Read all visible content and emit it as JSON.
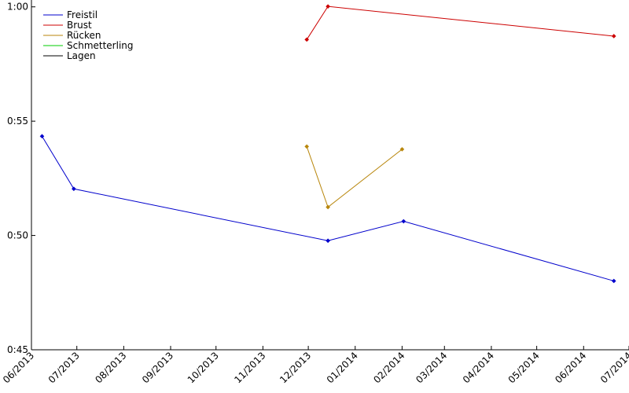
{
  "chart_data": {
    "type": "line",
    "title": "",
    "xlabel": "",
    "ylabel": "",
    "x_ticks": [
      "06/2013",
      "07/2013",
      "08/2013",
      "09/2013",
      "10/2013",
      "11/2013",
      "12/2013",
      "01/2014",
      "02/2014",
      "03/2014",
      "04/2014",
      "05/2014",
      "06/2014",
      "07/2014"
    ],
    "y_ticks": [
      "0:45",
      "0:50",
      "0:55",
      "1:00"
    ],
    "y_tick_values": [
      45,
      50,
      55,
      60
    ],
    "xlim": [
      "2013-06-01",
      "2014-07-01"
    ],
    "ylim": [
      45,
      60.3
    ],
    "legend_position": "top-left",
    "grid": false,
    "series": [
      {
        "name": "Freistil",
        "color": "#0000cc",
        "points": [
          {
            "x": "2013-06-08",
            "y": 54.34
          },
          {
            "x": "2013-06-29",
            "y": 52.04
          },
          {
            "x": "2013-12-14",
            "y": 49.77
          },
          {
            "x": "2014-02-02",
            "y": 50.62
          },
          {
            "x": "2014-06-21",
            "y": 48.01
          }
        ]
      },
      {
        "name": "Brust",
        "color": "#cc0000",
        "points": [
          {
            "x": "2013-11-30",
            "y": 58.57
          },
          {
            "x": "2013-12-14",
            "y": 60.02
          },
          {
            "x": "2014-06-21",
            "y": 58.72
          }
        ]
      },
      {
        "name": "Rücken",
        "color": "#b8860b",
        "points": [
          {
            "x": "2013-11-30",
            "y": 53.89
          },
          {
            "x": "2013-12-14",
            "y": 51.24
          },
          {
            "x": "2014-02-01",
            "y": 53.77
          }
        ]
      },
      {
        "name": "Schmetterling",
        "color": "#00cc00",
        "points": []
      },
      {
        "name": "Lagen",
        "color": "#000000",
        "points": []
      }
    ]
  }
}
